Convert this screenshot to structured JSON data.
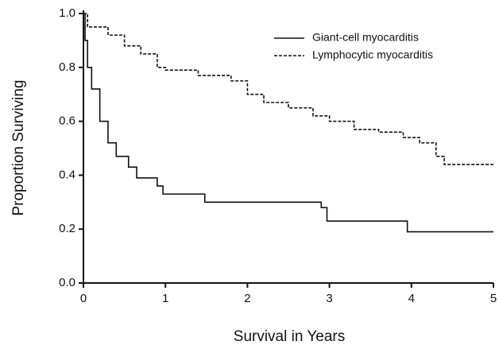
{
  "chart_data": {
    "type": "step",
    "xlabel": "Survival in Years",
    "ylabel": "Proportion Surviving",
    "xlim": [
      0,
      5
    ],
    "xticks": [
      0,
      1,
      2,
      3,
      4,
      5
    ],
    "ylim": [
      0,
      1
    ],
    "yticks": [
      {
        "value": 0,
        "label": "0.0"
      },
      {
        "value": 0.2,
        "label": "0.2"
      },
      {
        "value": 0.4,
        "label": "0.4"
      },
      {
        "value": 0.6,
        "label": "0.6"
      },
      {
        "value": 0.8,
        "label": "0.8"
      },
      {
        "value": 1,
        "label": "1.0"
      }
    ],
    "legend": "top-right",
    "series": [
      {
        "name": "Giant-cell myocarditis",
        "color": "#111111",
        "line_style": "solid",
        "x": [
          0,
          0.02,
          0.05,
          0.1,
          0.2,
          0.3,
          0.4,
          0.55,
          0.65,
          0.9,
          0.97,
          1.48,
          2.9,
          2.97,
          3.95,
          5.0
        ],
        "values": [
          1.0,
          0.9,
          0.8,
          0.72,
          0.6,
          0.52,
          0.47,
          0.43,
          0.39,
          0.36,
          0.33,
          0.3,
          0.28,
          0.23,
          0.19,
          0.19
        ]
      },
      {
        "name": "Lymphocytic myocarditis",
        "color": "#111111",
        "line_style": "dashed",
        "x": [
          0,
          0.05,
          0.3,
          0.5,
          0.7,
          0.9,
          1.0,
          1.4,
          1.8,
          2.0,
          2.2,
          2.5,
          2.8,
          3.0,
          3.3,
          3.6,
          3.9,
          4.1,
          4.3,
          4.4,
          5.0
        ],
        "values": [
          1.0,
          0.95,
          0.92,
          0.88,
          0.85,
          0.8,
          0.79,
          0.77,
          0.75,
          0.7,
          0.67,
          0.65,
          0.62,
          0.6,
          0.57,
          0.56,
          0.54,
          0.52,
          0.47,
          0.44,
          0.44
        ]
      }
    ]
  }
}
